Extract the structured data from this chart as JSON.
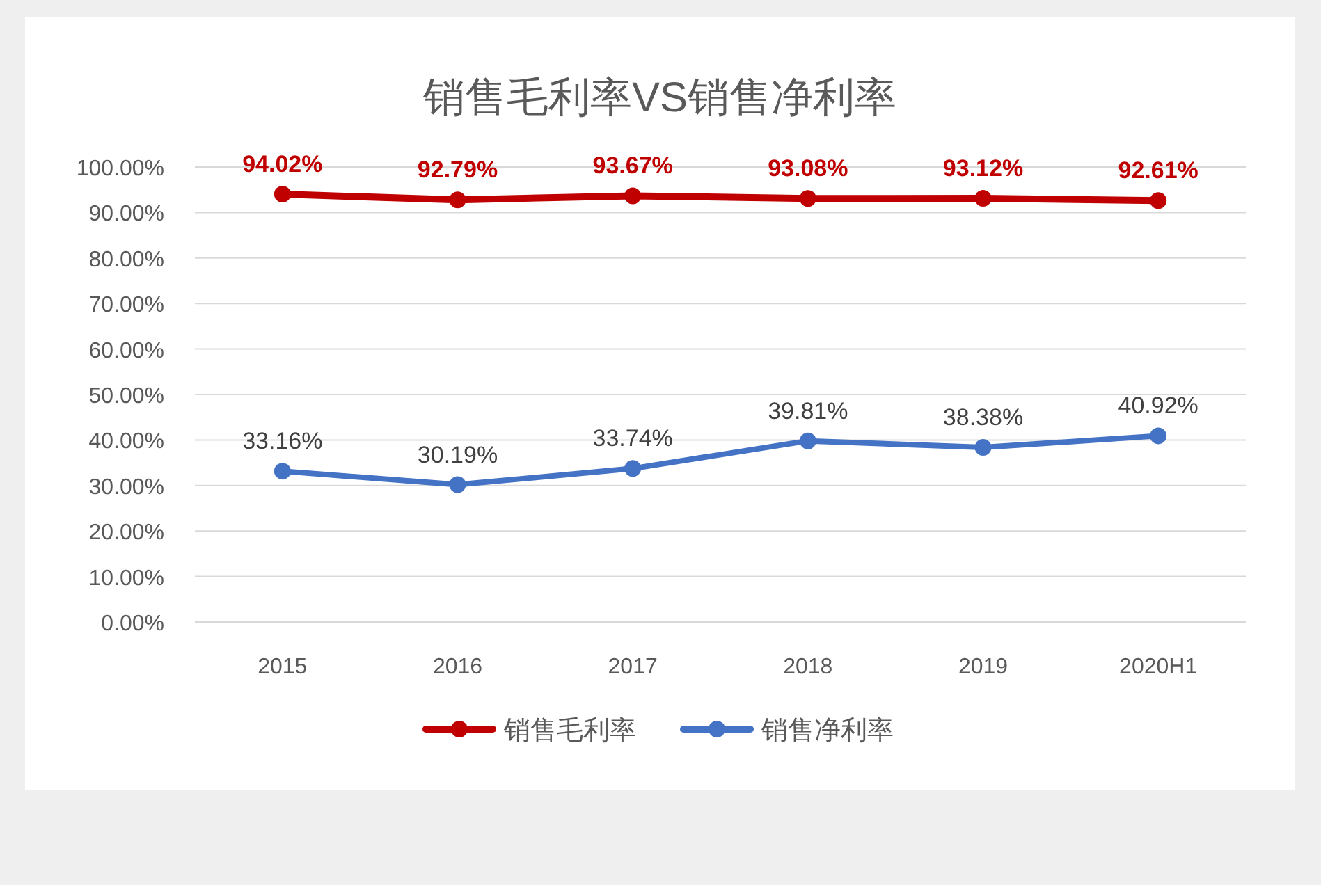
{
  "chart_data": {
    "type": "line",
    "title": "销售毛利率VS销售净利率",
    "categories": [
      "2015",
      "2016",
      "2017",
      "2018",
      "2019",
      "2020H1"
    ],
    "series": [
      {
        "name": "销售毛利率",
        "color": "#c00000",
        "values": [
          94.02,
          92.79,
          93.67,
          93.08,
          93.12,
          92.61
        ],
        "value_labels": [
          "94.02%",
          "92.79%",
          "93.67%",
          "93.08%",
          "93.12%",
          "92.61%"
        ]
      },
      {
        "name": "销售净利率",
        "color": "#4472c4",
        "values": [
          33.16,
          30.19,
          33.74,
          39.81,
          38.38,
          40.92
        ],
        "value_labels": [
          "33.16%",
          "30.19%",
          "33.74%",
          "39.81%",
          "38.38%",
          "40.92%"
        ]
      }
    ],
    "ylim": [
      0,
      100
    ],
    "yticks": [
      {
        "value": 0,
        "label": "0.00%"
      },
      {
        "value": 10,
        "label": "10.00%"
      },
      {
        "value": 20,
        "label": "20.00%"
      },
      {
        "value": 30,
        "label": "30.00%"
      },
      {
        "value": 40,
        "label": "40.00%"
      },
      {
        "value": 50,
        "label": "50.00%"
      },
      {
        "value": 60,
        "label": "60.00%"
      },
      {
        "value": 70,
        "label": "70.00%"
      },
      {
        "value": 80,
        "label": "80.00%"
      },
      {
        "value": 90,
        "label": "90.00%"
      },
      {
        "value": 100,
        "label": "100.00%"
      }
    ],
    "grid": "y",
    "legend": "bottom",
    "marker": "circle",
    "line_style": "solid"
  }
}
